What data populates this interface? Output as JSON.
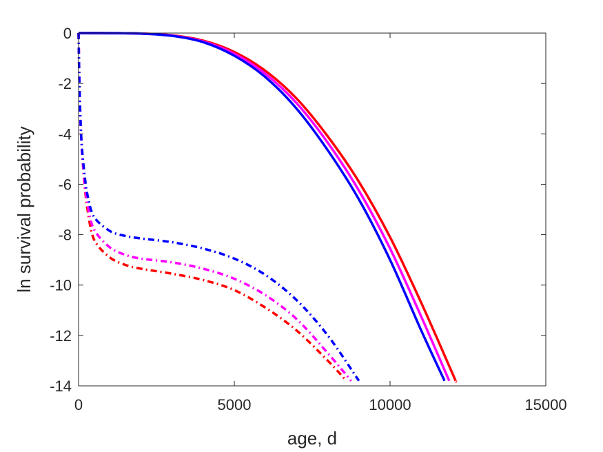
{
  "chart_data": {
    "type": "line",
    "title": "",
    "xlabel": "age, d",
    "ylabel": "ln survival probability",
    "xlim": [
      0,
      15000
    ],
    "ylim": [
      -14,
      0
    ],
    "xticks": [
      0,
      5000,
      10000,
      15000
    ],
    "yticks": [
      0,
      -2,
      -4,
      -6,
      -8,
      -10,
      -12,
      -14
    ],
    "xtick_labels": [
      "0",
      "5000",
      "10000",
      "15000"
    ],
    "ytick_labels": [
      "0",
      "-2",
      "-4",
      "-6",
      "-8",
      "-10",
      "-12",
      "-14"
    ],
    "grid": false,
    "legend": "none",
    "series": [
      {
        "color": "#ff0000",
        "style": "solid",
        "points": [
          [
            0,
            0
          ],
          [
            1000,
            -0.003
          ],
          [
            2000,
            -0.02
          ],
          [
            3000,
            -0.09
          ],
          [
            4000,
            -0.3
          ],
          [
            5000,
            -0.75
          ],
          [
            6000,
            -1.5
          ],
          [
            7000,
            -2.6
          ],
          [
            8000,
            -4.1
          ],
          [
            9000,
            -5.9
          ],
          [
            10000,
            -8.1
          ],
          [
            11000,
            -10.7
          ],
          [
            12000,
            -13.5
          ],
          [
            12100,
            -13.8
          ]
        ]
      },
      {
        "color": "#ff00ff",
        "style": "solid",
        "points": [
          [
            0,
            0
          ],
          [
            1000,
            -0.003
          ],
          [
            2000,
            -0.02
          ],
          [
            3000,
            -0.1
          ],
          [
            4000,
            -0.33
          ],
          [
            5000,
            -0.82
          ],
          [
            6000,
            -1.62
          ],
          [
            7000,
            -2.78
          ],
          [
            8000,
            -4.35
          ],
          [
            9000,
            -6.25
          ],
          [
            10000,
            -8.55
          ],
          [
            11000,
            -11.25
          ],
          [
            11900,
            -13.8
          ]
        ]
      },
      {
        "color": "#0000ff",
        "style": "solid",
        "points": [
          [
            0,
            0
          ],
          [
            1000,
            -0.003
          ],
          [
            2000,
            -0.02
          ],
          [
            3000,
            -0.11
          ],
          [
            4000,
            -0.36
          ],
          [
            5000,
            -0.9
          ],
          [
            6000,
            -1.75
          ],
          [
            7000,
            -3.0
          ],
          [
            8000,
            -4.65
          ],
          [
            9000,
            -6.6
          ],
          [
            10000,
            -9.0
          ],
          [
            11000,
            -11.8
          ],
          [
            11750,
            -13.8
          ]
        ]
      },
      {
        "color": "#ff0000",
        "style": "dashdot",
        "points": [
          [
            0,
            0
          ],
          [
            20,
            -1.5
          ],
          [
            50,
            -3.0
          ],
          [
            100,
            -4.5
          ],
          [
            200,
            -6.1
          ],
          [
            300,
            -7.1
          ],
          [
            500,
            -8.2
          ],
          [
            1000,
            -8.9
          ],
          [
            1500,
            -9.2
          ],
          [
            2000,
            -9.35
          ],
          [
            3000,
            -9.55
          ],
          [
            4000,
            -9.8
          ],
          [
            5000,
            -10.2
          ],
          [
            6000,
            -10.9
          ],
          [
            7000,
            -11.8
          ],
          [
            8000,
            -13.0
          ],
          [
            8600,
            -13.8
          ]
        ]
      },
      {
        "color": "#ff00ff",
        "style": "dashdot",
        "points": [
          [
            0,
            0
          ],
          [
            20,
            -1.5
          ],
          [
            50,
            -3.0
          ],
          [
            100,
            -4.5
          ],
          [
            200,
            -6.0
          ],
          [
            300,
            -6.9
          ],
          [
            500,
            -7.8
          ],
          [
            1000,
            -8.5
          ],
          [
            1500,
            -8.8
          ],
          [
            2000,
            -8.95
          ],
          [
            3000,
            -9.1
          ],
          [
            4000,
            -9.35
          ],
          [
            5000,
            -9.75
          ],
          [
            6000,
            -10.4
          ],
          [
            7000,
            -11.35
          ],
          [
            8000,
            -12.7
          ],
          [
            8750,
            -13.8
          ]
        ]
      },
      {
        "color": "#0000ff",
        "style": "dashdot",
        "points": [
          [
            0,
            0
          ],
          [
            20,
            -1.5
          ],
          [
            50,
            -3.0
          ],
          [
            100,
            -4.4
          ],
          [
            200,
            -5.7
          ],
          [
            300,
            -6.5
          ],
          [
            500,
            -7.3
          ],
          [
            1000,
            -7.85
          ],
          [
            1500,
            -8.05
          ],
          [
            2000,
            -8.15
          ],
          [
            3000,
            -8.3
          ],
          [
            4000,
            -8.55
          ],
          [
            5000,
            -8.95
          ],
          [
            6000,
            -9.6
          ],
          [
            7000,
            -10.6
          ],
          [
            8000,
            -12.0
          ],
          [
            9000,
            -13.8
          ]
        ]
      }
    ]
  }
}
